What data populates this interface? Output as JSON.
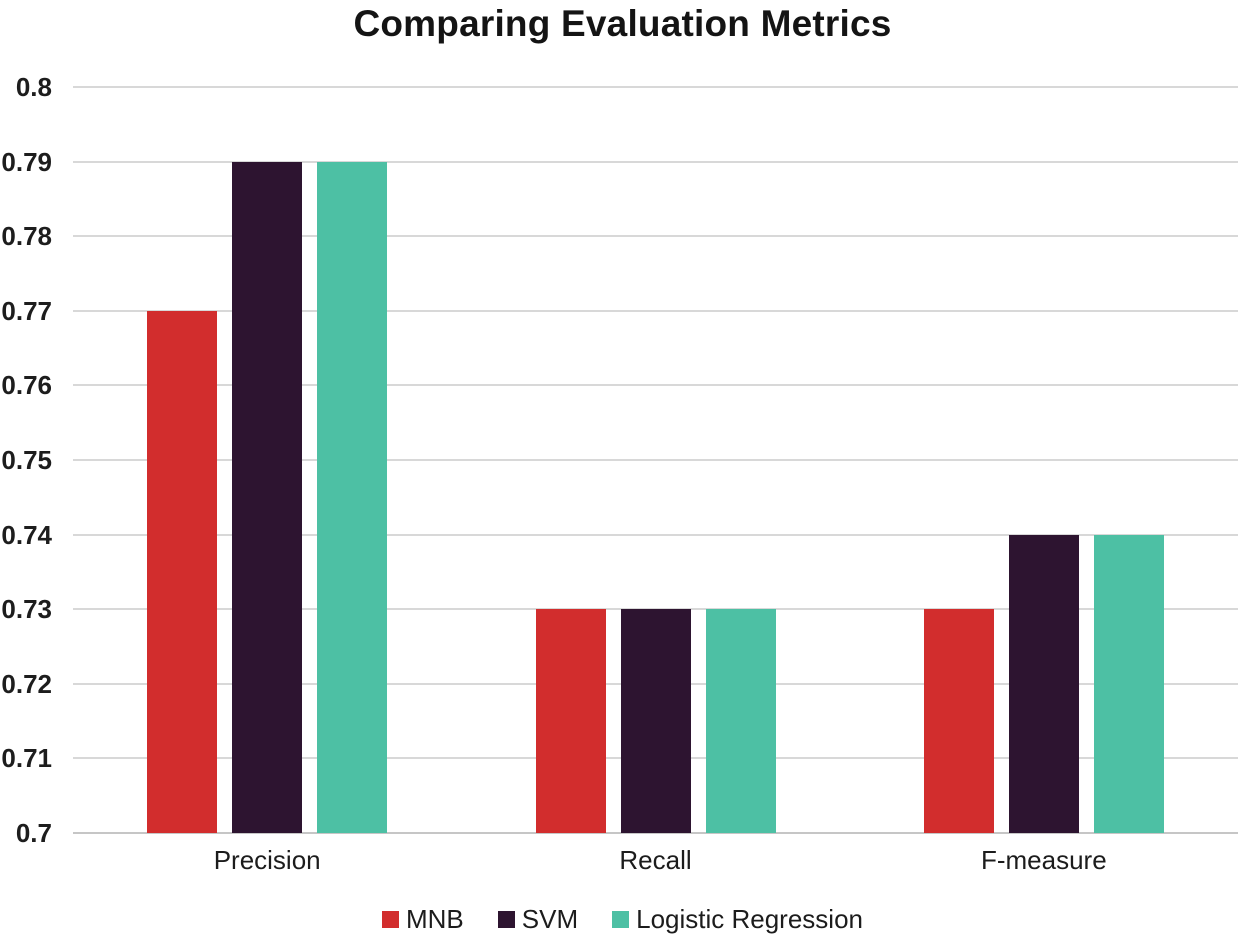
{
  "chart_data": {
    "type": "bar",
    "title": "Comparing Evaluation Metrics",
    "categories": [
      "Precision",
      "Recall",
      "F-measure"
    ],
    "series": [
      {
        "name": "MNB",
        "color": "#d22d2d",
        "values": [
          0.77,
          0.73,
          0.73
        ]
      },
      {
        "name": "SVM",
        "color": "#2d1430",
        "values": [
          0.79,
          0.73,
          0.74
        ]
      },
      {
        "name": "Logistic Regression",
        "color": "#4dc0a4",
        "values": [
          0.79,
          0.73,
          0.74
        ]
      }
    ],
    "xlabel": "",
    "ylabel": "",
    "ylim": [
      0.7,
      0.8
    ],
    "ytick_step": 0.01,
    "yticks": [
      "0.8",
      "0.79",
      "0.78",
      "0.77",
      "0.76",
      "0.75",
      "0.74",
      "0.73",
      "0.72",
      "0.71",
      "0.7"
    ],
    "grid": true,
    "legend_position": "bottom"
  },
  "colors": {
    "background": "#ffffff",
    "gridline": "#d8d8d8",
    "axis_line": "#c6c6c6",
    "title_text": "#141414",
    "tick_text": "#1d1d1d",
    "label_text": "#1c1c1c"
  }
}
